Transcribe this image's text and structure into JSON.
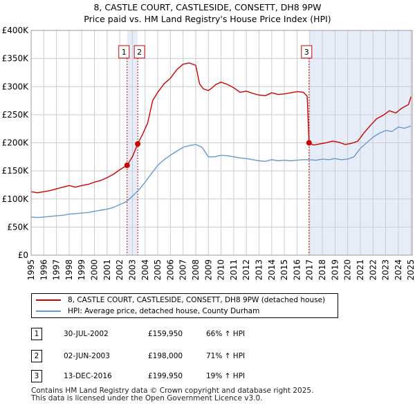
{
  "title_line1": "8, CASTLE COURT, CASTLESIDE, CONSETT, DH8 9PW",
  "title_line2": "Price paid vs. HM Land Registry's House Price Index (HPI)",
  "colors": {
    "property": "#cc0000",
    "hpi": "#6699cc",
    "shade": "#dde6f5",
    "grid": "#cccccc",
    "vline": "#cc0000"
  },
  "chart_data": {
    "type": "line",
    "title": "8, CASTLE COURT, CASTLESIDE, CONSETT, DH8 9PW — Price paid vs. HM Land Registry's House Price Index (HPI)",
    "xlabel": "",
    "ylabel": "",
    "xlim": [
      1995,
      2025.1
    ],
    "ylim": [
      0,
      400000
    ],
    "grid": true,
    "y_ticks": [
      {
        "value": 0,
        "label": "£0"
      },
      {
        "value": 50000,
        "label": "£50K"
      },
      {
        "value": 100000,
        "label": "£100K"
      },
      {
        "value": 150000,
        "label": "£150K"
      },
      {
        "value": 200000,
        "label": "£200K"
      },
      {
        "value": 250000,
        "label": "£250K"
      },
      {
        "value": 300000,
        "label": "£300K"
      },
      {
        "value": 350000,
        "label": "£350K"
      },
      {
        "value": 400000,
        "label": "£400K"
      }
    ],
    "x_ticks": [
      "1995",
      "1996",
      "1997",
      "1998",
      "1999",
      "2000",
      "2001",
      "2002",
      "2003",
      "2004",
      "2005",
      "2006",
      "2007",
      "2008",
      "2009",
      "2010",
      "2011",
      "2012",
      "2013",
      "2014",
      "2015",
      "2016",
      "2017",
      "2018",
      "2019",
      "2020",
      "2021",
      "2022",
      "2023",
      "2024",
      "2025"
    ],
    "series": [
      {
        "name": "8, CASTLE COURT, CASTLESIDE, CONSETT, DH8 9PW (detached house)",
        "x": [
          1995.0,
          1995.5,
          1996.0,
          1996.5,
          1997.0,
          1997.5,
          1998.0,
          1998.5,
          1999.0,
          1999.5,
          2000.0,
          2000.5,
          2001.0,
          2001.5,
          2002.0,
          2002.58,
          2003.0,
          2003.42,
          2003.8,
          2004.2,
          2004.6,
          2005.0,
          2005.5,
          2006.0,
          2006.5,
          2007.0,
          2007.5,
          2008.0,
          2008.3,
          2008.6,
          2009.0,
          2009.3,
          2009.6,
          2010.0,
          2010.5,
          2011.0,
          2011.5,
          2012.0,
          2012.5,
          2013.0,
          2013.5,
          2014.0,
          2014.5,
          2015.0,
          2015.5,
          2016.0,
          2016.5,
          2016.8,
          2016.95,
          2017.3,
          2017.8,
          2018.3,
          2018.8,
          2019.3,
          2019.8,
          2020.3,
          2020.8,
          2021.3,
          2021.8,
          2022.3,
          2022.8,
          2023.3,
          2023.8,
          2024.3,
          2024.8,
          2025.0
        ],
        "values": [
          113000,
          111000,
          113000,
          115000,
          118000,
          121000,
          124000,
          121000,
          124000,
          126000,
          130000,
          133000,
          138000,
          144000,
          152000,
          159950,
          175000,
          198000,
          215000,
          235000,
          275000,
          290000,
          305000,
          315000,
          330000,
          340000,
          342000,
          338000,
          305000,
          296000,
          293000,
          298000,
          304000,
          308000,
          304000,
          298000,
          290000,
          292000,
          288000,
          285000,
          284000,
          289000,
          286000,
          287000,
          289000,
          291000,
          290000,
          283000,
          199950,
          196000,
          198000,
          200000,
          203000,
          201000,
          197000,
          199000,
          203000,
          218000,
          231000,
          243000,
          249000,
          257000,
          253000,
          262000,
          268000,
          282000
        ]
      },
      {
        "name": "HPI: Average price, detached house, County Durham",
        "x": [
          1995.0,
          1995.5,
          1996.0,
          1996.5,
          1997.0,
          1997.5,
          1998.0,
          1998.5,
          1999.0,
          1999.5,
          2000.0,
          2000.5,
          2001.0,
          2001.5,
          2002.0,
          2002.5,
          2003.0,
          2003.5,
          2004.0,
          2004.5,
          2005.0,
          2005.5,
          2006.0,
          2006.5,
          2007.0,
          2007.5,
          2008.0,
          2008.5,
          2009.0,
          2009.5,
          2010.0,
          2010.5,
          2011.0,
          2011.5,
          2012.0,
          2012.5,
          2013.0,
          2013.5,
          2014.0,
          2014.5,
          2015.0,
          2015.5,
          2016.0,
          2016.5,
          2017.0,
          2017.5,
          2018.0,
          2018.5,
          2019.0,
          2019.5,
          2020.0,
          2020.5,
          2021.0,
          2021.5,
          2022.0,
          2022.5,
          2023.0,
          2023.5,
          2024.0,
          2024.5,
          2025.0
        ],
        "values": [
          68000,
          67000,
          68000,
          69000,
          70000,
          71000,
          73000,
          74000,
          75000,
          76000,
          78000,
          80000,
          82000,
          85000,
          90000,
          95000,
          105000,
          116000,
          130000,
          145000,
          160000,
          170000,
          178000,
          185000,
          192000,
          195000,
          197000,
          192000,
          175000,
          175000,
          178000,
          177000,
          175000,
          173000,
          172000,
          170000,
          168000,
          167000,
          170000,
          168000,
          169000,
          168000,
          169000,
          170000,
          170000,
          169000,
          171000,
          170000,
          172000,
          170000,
          171000,
          175000,
          190000,
          200000,
          210000,
          217000,
          222000,
          220000,
          228000,
          226000,
          230000
        ]
      }
    ],
    "sales": [
      {
        "x": 2002.58,
        "value": 159950,
        "label": "1"
      },
      {
        "x": 2003.42,
        "value": 198000,
        "label": "2"
      },
      {
        "x": 2016.95,
        "value": 199950,
        "label": "3"
      }
    ],
    "shaded_regions": [
      [
        2002.58,
        2003.42
      ],
      [
        2016.95,
        2025.1
      ]
    ],
    "legend_position": "below"
  },
  "legend": {
    "property_label": "8, CASTLE COURT, CASTLESIDE, CONSETT, DH8 9PW (detached house)",
    "hpi_label": "HPI: Average price, detached house, County Durham"
  },
  "transactions": [
    {
      "num": "1",
      "date": "30-JUL-2002",
      "price": "£159,950",
      "hpi": "66% ↑ HPI"
    },
    {
      "num": "2",
      "date": "02-JUN-2003",
      "price": "£198,000",
      "hpi": "71% ↑ HPI"
    },
    {
      "num": "3",
      "date": "13-DEC-2016",
      "price": "£199,950",
      "hpi": "19% ↑ HPI"
    }
  ],
  "footer_line1": "Contains HM Land Registry data © Crown copyright and database right 2025.",
  "footer_line2": "This data is licensed under the Open Government Licence v3.0."
}
